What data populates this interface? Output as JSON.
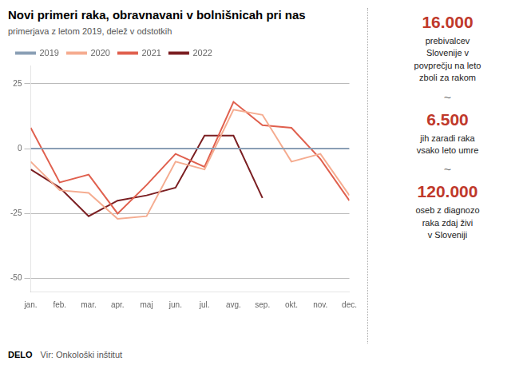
{
  "chart_data": {
    "type": "line",
    "title": "Novi primeri raka, obravnavani v bolnišnicah pri nas",
    "subtitle": "primerjava z letom 2019, delež v odstotkih",
    "categories": [
      "jan.",
      "feb.",
      "mar.",
      "apr.",
      "maj",
      "jun.",
      "jul.",
      "avg.",
      "sep.",
      "okt.",
      "nov.",
      "dec."
    ],
    "series": [
      {
        "name": "2019",
        "color": "#8a9fb5",
        "values": [
          0,
          0,
          0,
          0,
          0,
          0,
          0,
          0,
          0,
          0,
          0,
          0
        ]
      },
      {
        "name": "2020",
        "color": "#f5ac90",
        "values": [
          -5,
          -16,
          -17,
          -27,
          -26,
          -5,
          -8,
          15,
          13,
          -5,
          -2,
          -18
        ]
      },
      {
        "name": "2021",
        "color": "#e0604e",
        "values": [
          8,
          -13,
          -10,
          -25,
          -14,
          -2,
          -7,
          18,
          9,
          8,
          -4,
          -20
        ]
      },
      {
        "name": "2022",
        "color": "#7b1f22",
        "values": [
          -8,
          -15,
          -26,
          -20,
          -18,
          -15,
          5,
          5,
          -19,
          null,
          null,
          null
        ]
      }
    ],
    "ylim": [
      -55,
      32
    ],
    "yticks": [
      -50,
      -25,
      0,
      25
    ],
    "grid": true,
    "legend": "top",
    "annotations": [
      {
        "text": "16.000",
        "color": "#c0392b"
      },
      {
        "text": "prebivalcev\nSlovenije v\npovprečju na leto\nzboli za rakom"
      },
      {
        "text": "~"
      },
      {
        "text": "6.500",
        "color": "#c0392b"
      },
      {
        "text": "jih zaradi raka\nvsako leto umre"
      },
      {
        "text": "~"
      },
      {
        "text": "120.000",
        "color": "#c0392b"
      },
      {
        "text": "oseb z diagnozo\nraka zdaj živi\nv Sloveniji"
      },
      {
        "text": "DELO"
      },
      {
        "text": "Vir: Onkološki inštitut"
      }
    ]
  }
}
